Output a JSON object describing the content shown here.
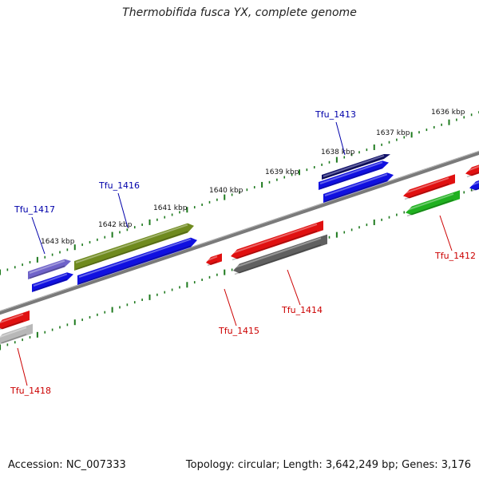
{
  "title": "Thermobifida fusca YX, complete genome",
  "footer": {
    "accession": "Accession: NC_007333",
    "summary": "Topology: circular; Length: 3,642,249 bp; Genes: 3,176"
  },
  "colors": {
    "backbone": "#7a7a7a",
    "tick": "#1e7a1e",
    "forward_label": "#0000aa",
    "reverse_label": "#cc0000"
  },
  "scale_ticks": [
    {
      "label": "1636 kbp"
    },
    {
      "label": "1637 kbp"
    },
    {
      "label": "1638 kbp"
    },
    {
      "label": "1639 kbp"
    },
    {
      "label": "1640 kbp"
    },
    {
      "label": "1641 kbp"
    },
    {
      "label": "1642 kbp"
    },
    {
      "label": "1643 kbp"
    }
  ],
  "gene_labels": [
    {
      "name": "Tfu_1413",
      "strand": "forward"
    },
    {
      "name": "Tfu_1416",
      "strand": "forward"
    },
    {
      "name": "Tfu_1417",
      "strand": "forward"
    },
    {
      "name": "Tfu_1412",
      "strand": "reverse"
    },
    {
      "name": "Tfu_1414",
      "strand": "reverse"
    },
    {
      "name": "Tfu_1415",
      "strand": "reverse"
    },
    {
      "name": "Tfu_1418",
      "strand": "reverse"
    }
  ],
  "features": [
    {
      "name": "tfu-1417-feature-a",
      "color": "#6f63c9"
    },
    {
      "name": "tfu-1417-feature-b",
      "color": "#1010e0"
    },
    {
      "name": "tfu-1416-feature-a",
      "color": "#6f8a1e"
    },
    {
      "name": "tfu-1416-feature-b",
      "color": "#1010e0"
    },
    {
      "name": "tfu-1413-feature-a",
      "color": "#1010e0"
    },
    {
      "name": "tfu-1413-feature-b",
      "color": "#10106a"
    },
    {
      "name": "tfu-1413-feature-c",
      "color": "#1010e0"
    },
    {
      "name": "tfu-1415-feature",
      "color": "#e01010"
    },
    {
      "name": "tfu-1414-feature-a",
      "color": "#e01010"
    },
    {
      "name": "tfu-1414-feature-b",
      "color": "#606060"
    },
    {
      "name": "tfu-1412-feature-a",
      "color": "#e01010"
    },
    {
      "name": "tfu-1412-feature-b",
      "color": "#20b020"
    },
    {
      "name": "tfu-1411-feature-a",
      "color": "#e01010"
    },
    {
      "name": "tfu-1411-feature-b",
      "color": "#1010e0"
    },
    {
      "name": "tfu-1418-feature-a",
      "color": "#e01010"
    },
    {
      "name": "tfu-1418-feature-b",
      "color": "#b8b8b8"
    }
  ]
}
